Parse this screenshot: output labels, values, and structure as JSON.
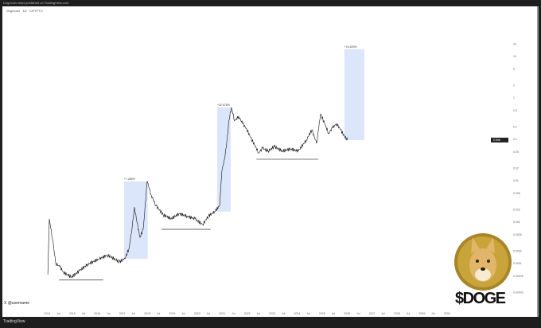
{
  "header": {
    "title_bar": "Dogecoin chart published on TradingView.com",
    "symbol": "Dogecoin · 1D · CRYPTO"
  },
  "watermark": "X @username",
  "footer": {
    "brand": "TradingView"
  },
  "logo": {
    "text": "$DOGE",
    "colors": {
      "coin": "#c9a43a",
      "coin_rim": "#a8842a",
      "fur": "#e2b66a"
    }
  },
  "colors": {
    "price_line": "#111111",
    "box_fill": "#dbe6fb",
    "support_line": "#555555",
    "current_price_tag": "#222222"
  },
  "chart_data": {
    "type": "line",
    "yscale": "log",
    "ylim": [
      1.5e-05,
      30
    ],
    "xlim": [
      2013.9,
      2030.2
    ],
    "grid": false,
    "current_price": "0.096",
    "x_ticks": [
      "2014",
      "Jul",
      "2015",
      "Jul",
      "2016",
      "Jul",
      "2017",
      "Jul",
      "2018",
      "Jul",
      "2019",
      "Jul",
      "2020",
      "Jul",
      "2021",
      "Jul",
      "2022",
      "Jul",
      "2023",
      "Jul",
      "2024",
      "Jul",
      "2025",
      "Jul",
      "2026",
      "Jul",
      "2027",
      "Jul",
      "2028",
      "Jul",
      "2029",
      "Jul",
      "2030"
    ],
    "y_ticks": [
      20,
      10,
      5,
      2,
      1,
      0.5,
      0.2,
      0.1,
      0.05,
      0.02,
      0.01,
      0.005,
      0.002,
      0.001,
      0.0005,
      0.0002,
      0.0001,
      5e-05,
      2e-05
    ],
    "series": [
      {
        "x": [
          2014.05,
          2014.11,
          2014.24,
          2014.37,
          2014.53,
          2014.68,
          2015.0,
          2015.32,
          2015.64,
          2016.12,
          2016.44,
          2016.91,
          2017.14,
          2017.3,
          2017.43,
          2017.52,
          2017.62,
          2017.74,
          2017.87,
          2018.03,
          2018.19,
          2018.38,
          2018.67,
          2018.99,
          2019.3,
          2019.62,
          2019.94,
          2020.25,
          2020.48,
          2020.73,
          2020.93,
          2021.02,
          2021.12,
          2021.21,
          2021.31,
          2021.4,
          2021.53,
          2021.69,
          2021.85,
          2022.01,
          2022.17,
          2022.33,
          2022.49,
          2022.65,
          2022.87,
          2023.12,
          2023.44,
          2023.76,
          2024.08,
          2024.4,
          2024.62,
          2024.81,
          2024.97,
          2025.13,
          2025.29,
          2025.45,
          2025.61,
          2025.77,
          2025.92,
          2026.05
        ],
        "y": [
          5.4e-05,
          0.0012,
          0.00039,
          0.0001,
          8.4e-05,
          6.1e-05,
          4.7e-05,
          6.7e-05,
          9.6e-05,
          0.00013,
          0.00016,
          0.00011,
          0.00013,
          0.00023,
          0.00077,
          0.0023,
          0.001,
          0.00043,
          0.00067,
          0.0096,
          0.0045,
          0.0025,
          0.0015,
          0.0012,
          0.0016,
          0.0014,
          0.0012,
          0.00087,
          0.0014,
          0.0018,
          0.0025,
          0.017,
          0.033,
          0.08,
          0.3,
          0.59,
          0.28,
          0.36,
          0.24,
          0.18,
          0.11,
          0.073,
          0.047,
          0.061,
          0.052,
          0.067,
          0.052,
          0.059,
          0.052,
          0.096,
          0.17,
          0.08,
          0.41,
          0.24,
          0.14,
          0.19,
          0.24,
          0.17,
          0.12,
          0.096
        ]
      }
    ],
    "boxes": [
      {
        "x0": 2017.1,
        "x1": 2018.05,
        "y0": 0.00013,
        "y1": 0.0096,
        "label": "+7,285%"
      },
      {
        "x0": 2020.83,
        "x1": 2021.37,
        "y0": 0.0018,
        "y1": 0.59,
        "label": "+32,678%"
      },
      {
        "x0": 2025.92,
        "x1": 2026.72,
        "y0": 0.096,
        "y1": 15,
        "label": "+15,525%"
      }
    ],
    "support_lines": [
      {
        "x0": 2014.5,
        "x1": 2016.27,
        "y": 4e-05
      },
      {
        "x0": 2018.6,
        "x1": 2020.57,
        "y": 0.00067
      },
      {
        "x0": 2022.4,
        "x1": 2024.88,
        "y": 0.033
      }
    ]
  }
}
